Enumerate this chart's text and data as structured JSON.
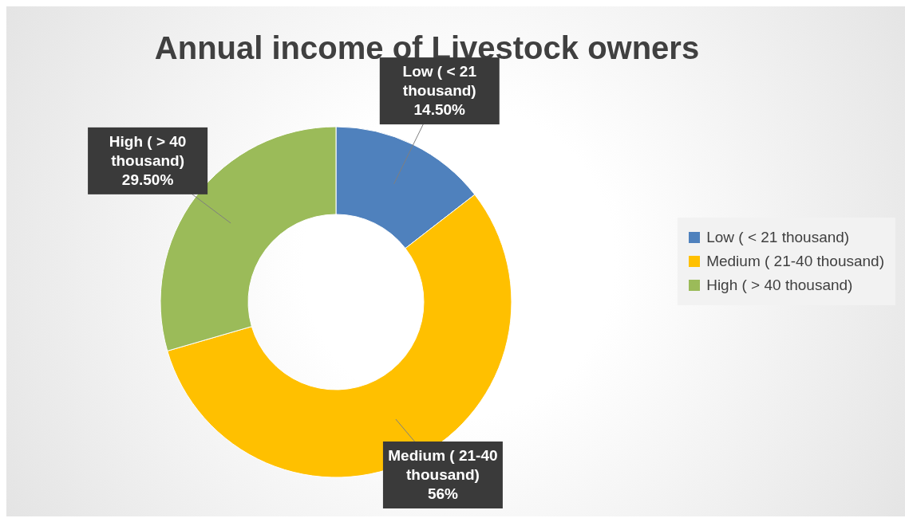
{
  "chart_data": {
    "type": "donut",
    "title": "Annual income of Livestock owners",
    "categories": [
      "Low ( < 21 thousand)",
      "Medium ( 21-40 thousand)",
      "High ( > 40 thousand)"
    ],
    "values": [
      14.5,
      56,
      29.5
    ],
    "colors": [
      "#4f81bd",
      "#ffc000",
      "#9bbb59"
    ],
    "value_labels": [
      "14.50%",
      "56%",
      "29.50%"
    ],
    "legend": "right"
  }
}
